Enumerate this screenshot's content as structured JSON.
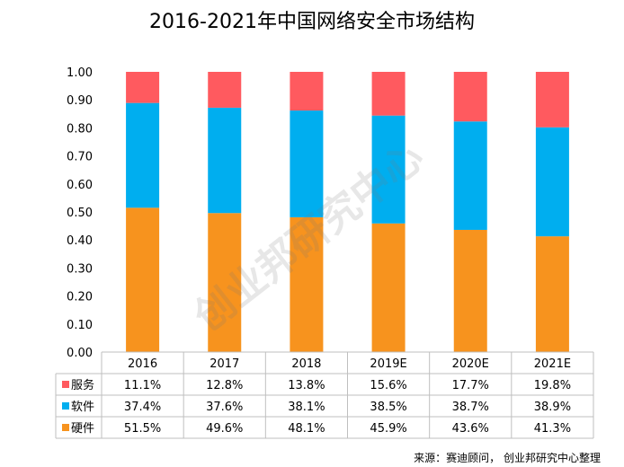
{
  "chart_data": {
    "type": "bar",
    "stacked": true,
    "title": "2016-2021年中国网络安全市场结构",
    "categories": [
      "2016",
      "2017",
      "2018",
      "2019E",
      "2020E",
      "2021E"
    ],
    "ylim": [
      0,
      1
    ],
    "yticks": [
      "0.00",
      "0.10",
      "0.20",
      "0.30",
      "0.40",
      "0.50",
      "0.60",
      "0.70",
      "0.80",
      "0.90",
      "1.00"
    ],
    "grid": false,
    "legend": "data-table",
    "series": [
      {
        "name": "硬件",
        "color": "#F7931E",
        "values": [
          0.515,
          0.496,
          0.481,
          0.459,
          0.436,
          0.413
        ],
        "labels": [
          "51.5%",
          "49.6%",
          "48.1%",
          "45.9%",
          "43.6%",
          "41.3%"
        ]
      },
      {
        "name": "软件",
        "color": "#00AEEF",
        "values": [
          0.374,
          0.376,
          0.381,
          0.385,
          0.387,
          0.389
        ],
        "labels": [
          "37.4%",
          "37.6%",
          "38.1%",
          "38.5%",
          "38.7%",
          "38.9%"
        ]
      },
      {
        "name": "服务",
        "color": "#FF5A5F",
        "values": [
          0.111,
          0.128,
          0.138,
          0.156,
          0.177,
          0.198
        ],
        "labels": [
          "11.1%",
          "12.8%",
          "13.8%",
          "15.6%",
          "17.7%",
          "19.8%"
        ]
      }
    ],
    "table_order": [
      "服务",
      "软件",
      "硬件"
    ]
  },
  "watermark": "创业邦研究中心",
  "source": "来源：赛迪顾问， 创业邦研究中心整理"
}
